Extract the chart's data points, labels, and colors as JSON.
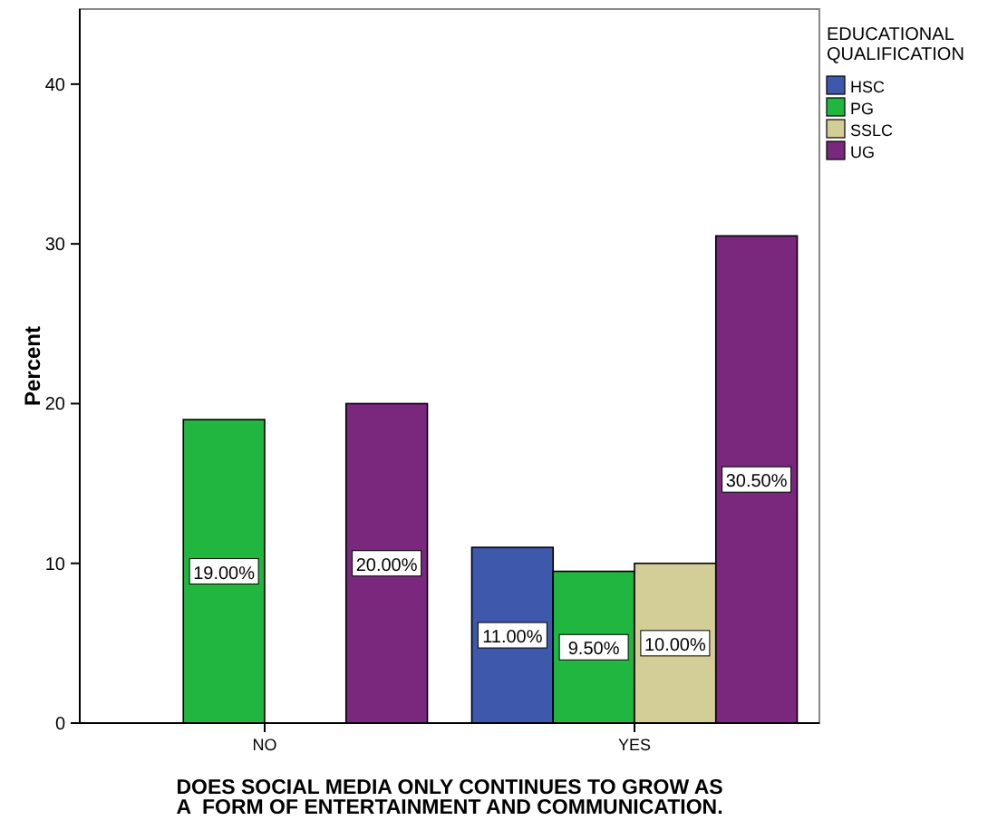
{
  "chart_data": {
    "type": "bar",
    "xlabel": "DOES SOCIAL MEDIA ONLY CONTINUES TO GROW AS\nA  FORM OF ENTERTAINMENT AND COMMUNICATION.",
    "ylabel": "Percent",
    "legend_title": "EDUCATIONAL\nQUALIFICATION",
    "legend": "top right",
    "categories": [
      "NO",
      "YES"
    ],
    "series": [
      {
        "name": "HSC",
        "color": "#3e58ac",
        "values": [
          null,
          11
        ],
        "value_labels": [
          null,
          "11.00%"
        ]
      },
      {
        "name": "PG",
        "color": "#21b640",
        "values": [
          19,
          9.5
        ],
        "value_labels": [
          "19.00%",
          "9.50%"
        ]
      },
      {
        "name": "SSLC",
        "color": "#d3ce97",
        "values": [
          null,
          10
        ],
        "value_labels": [
          null,
          "10.00%"
        ]
      },
      {
        "name": "UG",
        "color": "#79287e",
        "values": [
          20,
          30.5
        ],
        "value_labels": [
          "20.00%",
          "30.50%"
        ]
      }
    ],
    "ylim": [
      0,
      44.7
    ],
    "yticks": [
      0,
      10,
      20,
      30,
      40
    ]
  }
}
